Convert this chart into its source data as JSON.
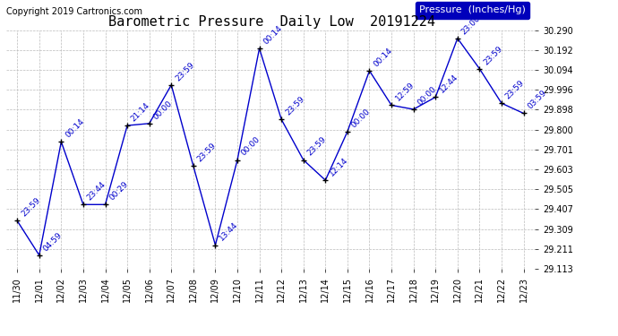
{
  "title": "Barometric Pressure  Daily Low  20191224",
  "copyright": "Copyright 2019 Cartronics.com",
  "legend_label": "Pressure  (Inches/Hg)",
  "x_labels": [
    "11/30",
    "12/01",
    "12/02",
    "12/03",
    "12/04",
    "12/05",
    "12/06",
    "12/07",
    "12/08",
    "12/09",
    "12/10",
    "12/11",
    "12/12",
    "12/13",
    "12/14",
    "12/15",
    "12/16",
    "12/17",
    "12/18",
    "12/19",
    "12/20",
    "12/21",
    "12/22",
    "12/23"
  ],
  "y_values": [
    29.35,
    29.18,
    29.74,
    29.43,
    29.43,
    29.82,
    29.83,
    30.02,
    29.62,
    29.23,
    29.65,
    30.2,
    29.85,
    29.65,
    29.55,
    29.79,
    30.09,
    29.92,
    29.9,
    29.96,
    30.25,
    30.1,
    29.93,
    29.88
  ],
  "point_labels": [
    "23:59",
    "04:59",
    "00:14",
    "23:44",
    "00:29",
    "21:14",
    "00:00",
    "23:59",
    "23:59",
    "13:44",
    "00:00",
    "00:14",
    "23:59",
    "23:59",
    "12:14",
    "00:00",
    "00:14",
    "12:59",
    "00:00",
    "12:44",
    "23:00",
    "23:59",
    "23:59",
    "03:59"
  ],
  "line_color": "#0000CC",
  "marker_color": "#000000",
  "label_color": "#0000CC",
  "background_color": "#ffffff",
  "grid_color": "#bbbbbb",
  "ylim_min": 29.113,
  "ylim_max": 30.29,
  "yticks": [
    29.113,
    29.211,
    29.309,
    29.407,
    29.505,
    29.603,
    29.701,
    29.8,
    29.898,
    29.996,
    30.094,
    30.192,
    30.29
  ],
  "title_fontsize": 11,
  "copyright_fontsize": 7,
  "legend_fontsize": 8,
  "tick_fontsize": 7,
  "label_fontsize": 6.5,
  "legend_bg": "#0000BB",
  "legend_text_color": "#ffffff"
}
